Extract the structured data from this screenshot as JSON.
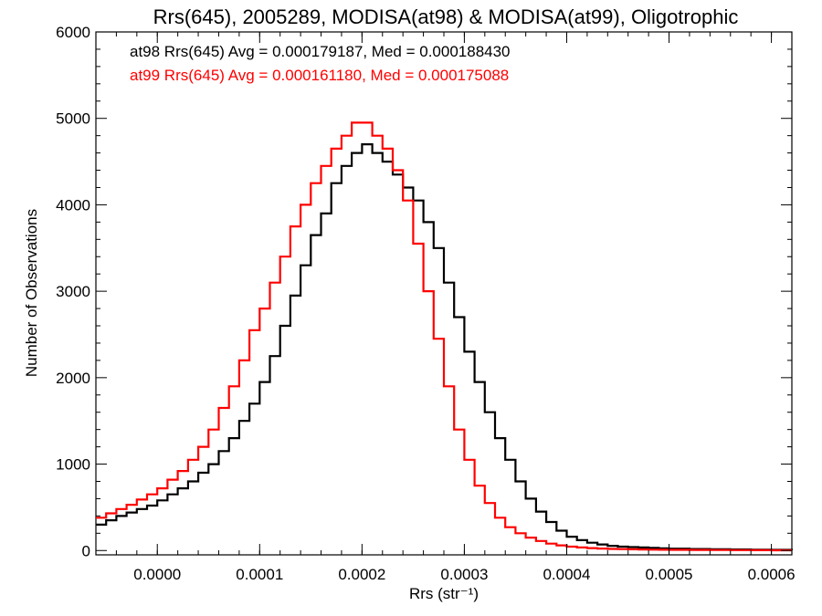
{
  "chart_data": {
    "type": "line",
    "title": "Rrs(645), 2005289, MODISA(at98) & MODISA(at99), Oligotrophic",
    "xlabel": "Rrs (str⁻¹)",
    "ylabel": "Number of Observations",
    "xlim": [
      -6e-05,
      0.00062
    ],
    "ylim": [
      -50,
      6000
    ],
    "xticks": [
      0.0,
      0.0001,
      0.0002,
      0.0003,
      0.0004,
      0.0005,
      0.0006
    ],
    "xtick_labels": [
      "0.0000",
      "0.0001",
      "0.0002",
      "0.0003",
      "0.0004",
      "0.0005",
      "0.0006"
    ],
    "yticks": [
      0,
      1000,
      2000,
      3000,
      4000,
      5000,
      6000
    ],
    "ytick_labels": [
      "0",
      "1000",
      "2000",
      "3000",
      "4000",
      "5000",
      "6000"
    ],
    "grid": false,
    "legend_position": "top-left",
    "annotations": [
      {
        "text": "at98 Rrs(645) Avg = 0.000179187, Med = 0.000188430",
        "color": "#000000"
      },
      {
        "text": "at99 Rrs(645) Avg = 0.000161180, Med = 0.000175088",
        "color": "#ff0000"
      }
    ],
    "series": [
      {
        "name": "at98",
        "color": "#000000",
        "x": [
          -6e-05,
          -5e-05,
          -4e-05,
          -3e-05,
          -2e-05,
          -1e-05,
          0.0,
          1e-05,
          2e-05,
          3e-05,
          4e-05,
          5e-05,
          6e-05,
          7e-05,
          8e-05,
          9e-05,
          0.0001,
          0.00011,
          0.00012,
          0.00013,
          0.00014,
          0.00015,
          0.00016,
          0.00017,
          0.00018,
          0.00019,
          0.0002,
          0.00021,
          0.00022,
          0.00023,
          0.00024,
          0.00025,
          0.00026,
          0.00027,
          0.00028,
          0.00029,
          0.0003,
          0.00031,
          0.00032,
          0.00033,
          0.00034,
          0.00035,
          0.00036,
          0.00037,
          0.00038,
          0.00039,
          0.0004,
          0.00041,
          0.00042,
          0.00043,
          0.00044,
          0.00045,
          0.00046,
          0.00047,
          0.00048,
          0.00049,
          0.0005,
          0.00052,
          0.00054,
          0.00056,
          0.00058,
          0.0006,
          0.00062
        ],
        "y": [
          300,
          350,
          400,
          440,
          480,
          520,
          580,
          650,
          720,
          800,
          900,
          1000,
          1150,
          1300,
          1500,
          1700,
          1950,
          2250,
          2600,
          2950,
          3300,
          3650,
          3900,
          4250,
          4450,
          4600,
          4700,
          4600,
          4500,
          4350,
          4200,
          4050,
          3800,
          3500,
          3100,
          2700,
          2300,
          1950,
          1600,
          1300,
          1050,
          800,
          600,
          450,
          330,
          230,
          160,
          120,
          90,
          70,
          55,
          45,
          40,
          35,
          30,
          25,
          22,
          18,
          15,
          12,
          10,
          8,
          6
        ]
      },
      {
        "name": "at99",
        "color": "#ff0000",
        "x": [
          -6e-05,
          -5e-05,
          -4e-05,
          -3e-05,
          -2e-05,
          -1e-05,
          0.0,
          1e-05,
          2e-05,
          3e-05,
          4e-05,
          5e-05,
          6e-05,
          7e-05,
          8e-05,
          9e-05,
          0.0001,
          0.00011,
          0.00012,
          0.00013,
          0.00014,
          0.00015,
          0.00016,
          0.00017,
          0.00018,
          0.00019,
          0.0002,
          0.00021,
          0.00022,
          0.00023,
          0.00024,
          0.00025,
          0.00026,
          0.00027,
          0.00028,
          0.00029,
          0.0003,
          0.00031,
          0.00032,
          0.00033,
          0.00034,
          0.00035,
          0.00036,
          0.00037,
          0.00038,
          0.00039,
          0.0004,
          0.00041,
          0.00042,
          0.00043,
          0.00044,
          0.00045,
          0.00046,
          0.00047,
          0.00048,
          0.00049,
          0.0005,
          0.00052,
          0.00054,
          0.00056,
          0.00058,
          0.0006,
          0.00062
        ],
        "y": [
          380,
          430,
          480,
          530,
          590,
          650,
          720,
          820,
          920,
          1050,
          1200,
          1400,
          1650,
          1900,
          2200,
          2550,
          2800,
          3100,
          3400,
          3750,
          4000,
          4250,
          4450,
          4650,
          4800,
          4950,
          4950,
          4800,
          4650,
          4400,
          4050,
          3550,
          3000,
          2450,
          1900,
          1400,
          1050,
          750,
          550,
          380,
          270,
          200,
          150,
          110,
          80,
          60,
          45,
          35,
          28,
          23,
          19,
          16,
          14,
          12,
          10,
          9,
          8,
          7,
          6,
          5,
          4,
          3,
          3
        ]
      }
    ]
  }
}
